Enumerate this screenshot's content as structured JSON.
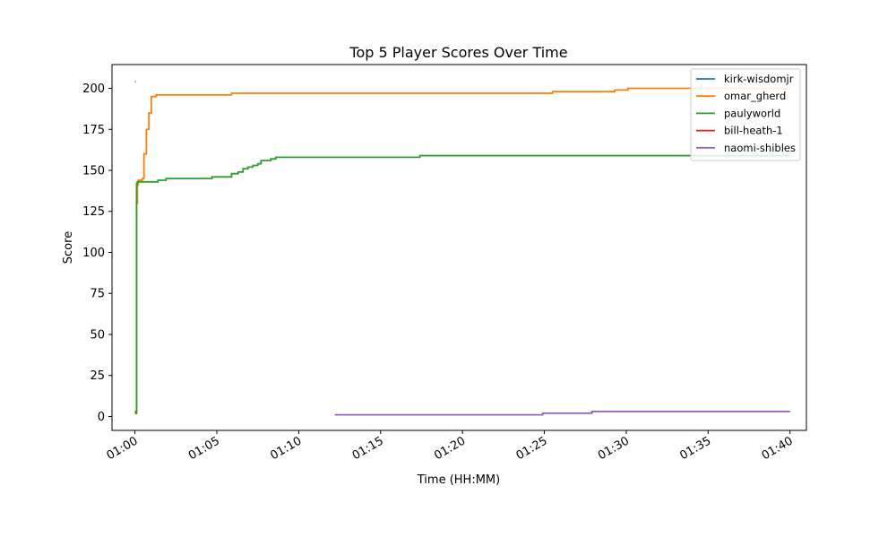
{
  "chart_data": {
    "type": "line",
    "title": "Top 5 Player Scores Over Time",
    "xlabel": "Time (HH:MM)",
    "ylabel": "Score",
    "x_tick_labels": [
      "01:00",
      "01:05",
      "01:10",
      "01:15",
      "01:20",
      "01:25",
      "01:30",
      "01:35",
      "01:40"
    ],
    "x_tick_values_minutes": [
      60,
      65,
      70,
      75,
      80,
      85,
      90,
      95,
      100
    ],
    "y_ticks": [
      0,
      25,
      50,
      75,
      100,
      125,
      150,
      175,
      200
    ],
    "xlim_minutes": [
      58.6,
      101.0
    ],
    "ylim": [
      -8.5,
      214.5
    ],
    "grid": false,
    "legend_position": "top-right",
    "series": [
      {
        "name": "kirk-wisdomjr",
        "color": "#1f77b4",
        "step": true,
        "points": [
          [
            60.0,
            204
          ],
          [
            60.05,
            204
          ]
        ]
      },
      {
        "name": "omar_gherd",
        "color": "#ff7f0e",
        "step": true,
        "points": [
          [
            60.0,
            3
          ],
          [
            60.06,
            2
          ],
          [
            60.1,
            130
          ],
          [
            60.15,
            141
          ],
          [
            60.2,
            144
          ],
          [
            60.45,
            145
          ],
          [
            60.55,
            160
          ],
          [
            60.7,
            175
          ],
          [
            60.85,
            185
          ],
          [
            61.0,
            195
          ],
          [
            61.3,
            196
          ],
          [
            65.9,
            197
          ],
          [
            85.5,
            198
          ],
          [
            89.3,
            199
          ],
          [
            90.1,
            200
          ],
          [
            100.0,
            200
          ]
        ]
      },
      {
        "name": "paulyworld",
        "color": "#2ca02c",
        "step": true,
        "points": [
          [
            60.0,
            3
          ],
          [
            60.05,
            2
          ],
          [
            60.1,
            142
          ],
          [
            60.15,
            143
          ],
          [
            61.4,
            144
          ],
          [
            61.9,
            145
          ],
          [
            64.7,
            146
          ],
          [
            65.9,
            148
          ],
          [
            66.3,
            149
          ],
          [
            66.6,
            151
          ],
          [
            66.9,
            152
          ],
          [
            67.2,
            153
          ],
          [
            67.5,
            154
          ],
          [
            67.7,
            156
          ],
          [
            68.3,
            157
          ],
          [
            68.6,
            158
          ],
          [
            77.4,
            159
          ],
          [
            100.0,
            159
          ]
        ]
      },
      {
        "name": "bill-heath-1",
        "color": "#d62728",
        "step": true,
        "points": [
          [
            60.0,
            3
          ],
          [
            60.05,
            3
          ]
        ]
      },
      {
        "name": "naomi-shibles",
        "color": "#9467bd",
        "step": true,
        "points": [
          [
            72.2,
            1
          ],
          [
            84.9,
            2
          ],
          [
            87.9,
            3
          ],
          [
            100.0,
            3
          ]
        ]
      }
    ]
  }
}
